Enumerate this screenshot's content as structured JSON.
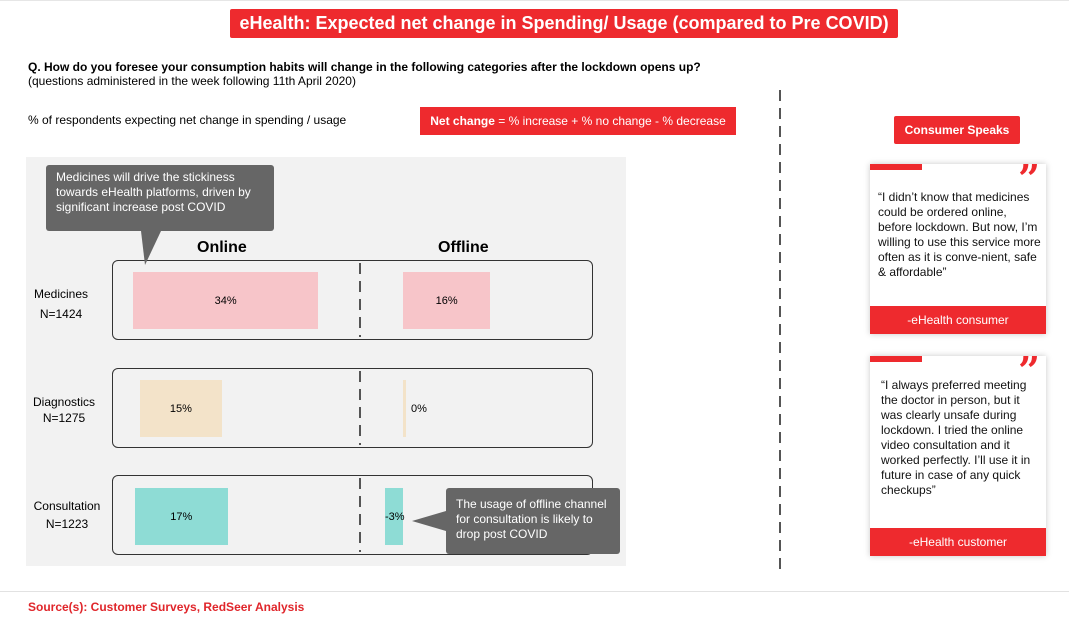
{
  "title": "eHealth: Expected net change in Spending/ Usage (compared to Pre COVID)",
  "question": "Q. How do you foresee your consumption habits will change in the following categories after the lockdown opens up?",
  "question_note": "(questions administered in the week following 11th April 2020)",
  "respondents_label": "% of respondents expecting net change in spending / usage",
  "net_change": {
    "bold": "Net change",
    "formula": " = % increase + % no change - % decrease"
  },
  "chart_data": {
    "type": "bar",
    "categories": [
      {
        "name": "Medicines",
        "n": "N=1424"
      },
      {
        "name": "Diagnostics",
        "n": "N=1275"
      },
      {
        "name": "Consultation",
        "n": "N=1223"
      }
    ],
    "series": [
      {
        "name": "Online",
        "values": [
          34,
          15,
          17
        ],
        "labels": [
          "34%",
          "15%",
          "17%"
        ]
      },
      {
        "name": "Offline",
        "values": [
          16,
          0,
          -3
        ],
        "labels": [
          "16%",
          "0%",
          "-3%"
        ]
      }
    ],
    "colors": {
      "Medicines": "#f7c5c9",
      "Diagnostics": "#f3e3c9",
      "Consultation": "#8edcd5"
    }
  },
  "callouts": {
    "medicines": "Medicines will drive the stickiness towards eHealth platforms, driven by significant increase post COVID",
    "consultation": "The usage of offline channel for consultation is likely to drop post COVID"
  },
  "consumer_speaks": {
    "heading": "Consumer Speaks",
    "quotes": [
      {
        "text": "“I didn’t know that medicines could be ordered online, before lockdown. But now, I’m willing to use this service more often as it is conve-nient, safe & affordable”",
        "source": "-eHealth consumer"
      },
      {
        "text": "“I always preferred meeting the doctor in person, but it was clearly unsafe during lockdown. I tried the online video consultation and it worked perfectly. I’ll use it in future in case of any quick checkups”",
        "source": "-eHealth customer"
      }
    ]
  },
  "source": "Source(s): Customer Surveys, RedSeer Analysis",
  "accent_color": "#ee2a2e"
}
